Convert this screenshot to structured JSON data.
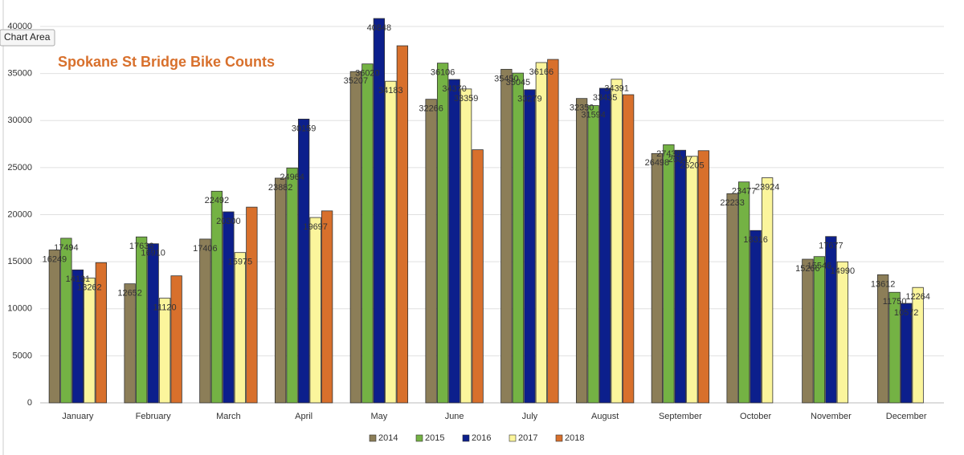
{
  "tooltip": "Chart Area",
  "chart_data": {
    "type": "bar",
    "title": "Spokane St Bridge Bike Counts",
    "categories": [
      "January",
      "February",
      "March",
      "April",
      "May",
      "June",
      "July",
      "August",
      "September",
      "October",
      "November",
      "December"
    ],
    "series": [
      {
        "name": "2014",
        "color": "#8c7e58",
        "data_labels": true,
        "values": [
          16249,
          12652,
          17406,
          23882,
          35207,
          32266,
          35450,
          32350,
          26498,
          22233,
          15266,
          13612
        ]
      },
      {
        "name": "2015",
        "color": "#74b244",
        "data_labels": true,
        "values": [
          17494,
          17636,
          22492,
          24964,
          36020,
          36106,
          35045,
          31594,
          27438,
          23477,
          15546,
          11750
        ]
      },
      {
        "name": "2016",
        "color": "#0c1f8c",
        "data_labels": true,
        "values": [
          14131,
          16910,
          20300,
          30159,
          40848,
          34370,
          33279,
          33435,
          26847,
          18316,
          17677,
          10572
        ]
      },
      {
        "name": "2017",
        "color": "#fbf59c",
        "data_labels": true,
        "values": [
          13262,
          11120,
          15975,
          19697,
          34183,
          33359,
          36166,
          34391,
          26205,
          23924,
          14990,
          12264
        ]
      },
      {
        "name": "2018",
        "color": "#d8702c",
        "data_labels": false,
        "values": [
          14900,
          13500,
          20800,
          20400,
          37950,
          26900,
          36500,
          32750,
          26800,
          null,
          null,
          null
        ]
      }
    ],
    "ylim": [
      0,
      40000
    ],
    "yticks": [
      0,
      5000,
      10000,
      15000,
      20000,
      25000,
      30000,
      35000,
      40000
    ],
    "grid": true,
    "legend": "bottom"
  }
}
